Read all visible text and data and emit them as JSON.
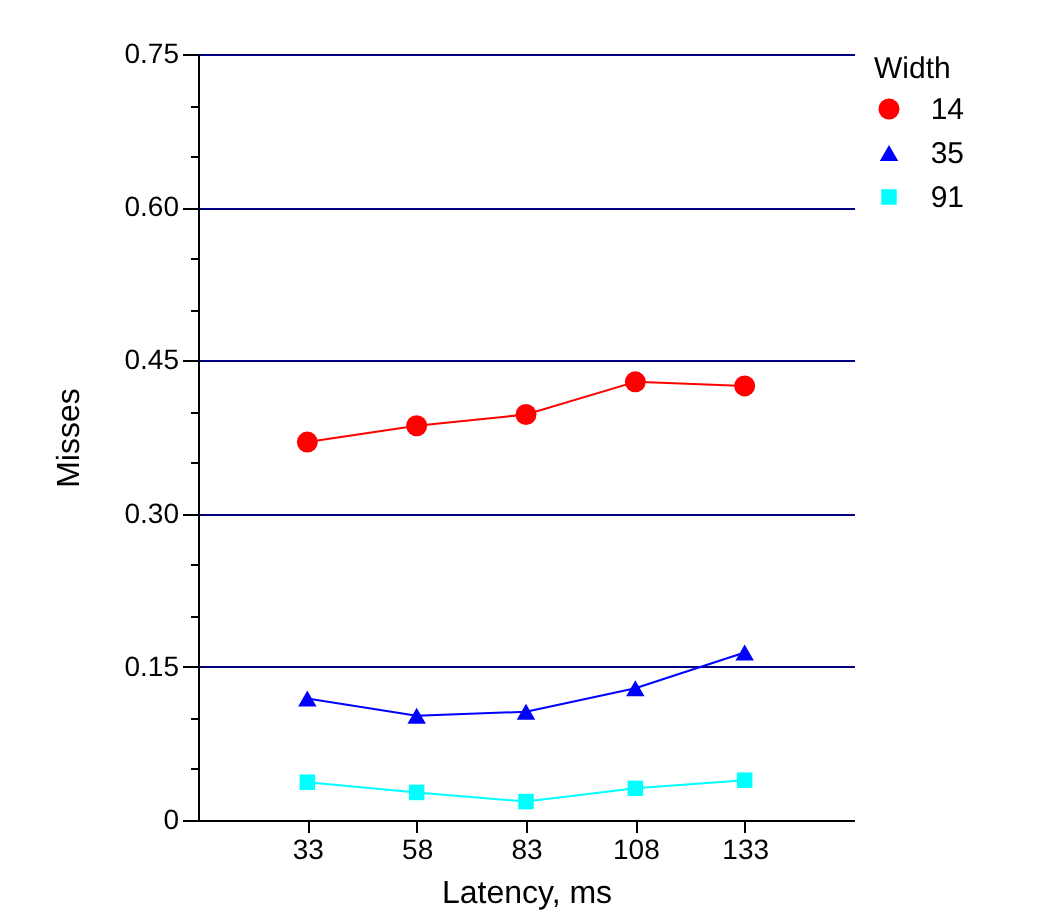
{
  "chart_data": {
    "type": "line",
    "xlabel": "Latency, ms",
    "ylabel": "Misses",
    "legend_title": "Width",
    "x": [
      33,
      58,
      83,
      108,
      133
    ],
    "xlim": [
      8,
      158
    ],
    "xticks": [
      33,
      58,
      83,
      108,
      133
    ],
    "ylim": [
      0,
      0.75
    ],
    "yticks": [
      0,
      {
        "value": 0.05,
        "label": null
      },
      {
        "value": 0.1,
        "label": null
      },
      {
        "value": 0.15,
        "label": "0.15"
      },
      {
        "value": 0.2,
        "label": null
      },
      {
        "value": 0.25,
        "label": null
      },
      {
        "value": 0.3,
        "label": "0.30"
      },
      {
        "value": 0.35,
        "label": null
      },
      {
        "value": 0.4,
        "label": null
      },
      {
        "value": 0.45,
        "label": "0.45"
      },
      {
        "value": 0.5,
        "label": null
      },
      {
        "value": 0.55,
        "label": null
      },
      {
        "value": 0.6,
        "label": "0.60"
      },
      {
        "value": 0.65,
        "label": null
      },
      {
        "value": 0.7,
        "label": null
      },
      {
        "value": 0.75,
        "label": "0.75"
      }
    ],
    "grid": "y",
    "legend": "top right",
    "line_style": "solid",
    "series": [
      {
        "name": "14",
        "color": "#ff0000",
        "marker": "circle",
        "values": [
          0.37,
          0.386,
          0.397,
          0.429,
          0.425
        ]
      },
      {
        "name": "35",
        "color": "#0000ff",
        "marker": "triangle",
        "values": [
          0.119,
          0.102,
          0.106,
          0.129,
          0.164
        ]
      },
      {
        "name": "91",
        "color": "#00ffff",
        "marker": "square",
        "values": [
          0.037,
          0.027,
          0.018,
          0.031,
          0.039
        ]
      }
    ]
  }
}
